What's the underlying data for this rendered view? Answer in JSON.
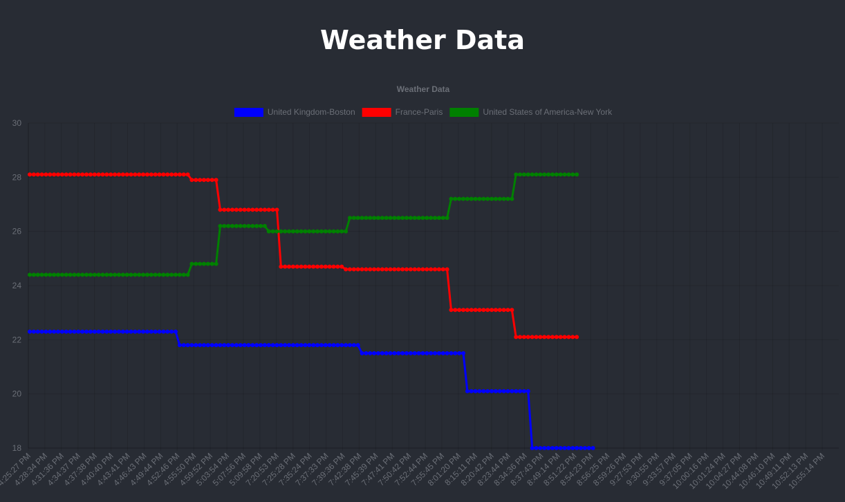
{
  "page": {
    "title": "Weather Data"
  },
  "chart_data": {
    "type": "line",
    "title": "Weather Data",
    "xlabel": "",
    "ylabel": "",
    "ylim": [
      18,
      30
    ],
    "y_ticks": [
      18,
      20,
      22,
      24,
      26,
      28,
      30
    ],
    "grid": true,
    "legend_position": "top-center",
    "tick_labels": [
      "4:25:27 PM",
      "4:28:34 PM",
      "4:31:36 PM",
      "4:34:37 PM",
      "4:37:38 PM",
      "4:40:40 PM",
      "4:43:41 PM",
      "4:46:43 PM",
      "4:49:44 PM",
      "4:52:46 PM",
      "4:55:50 PM",
      "4:59:52 PM",
      "5:03:54 PM",
      "5:07:56 PM",
      "5:09:58 PM",
      "7:20:53 PM",
      "7:25:28 PM",
      "7:35:24 PM",
      "7:37:33 PM",
      "7:39:36 PM",
      "7:42:38 PM",
      "7:45:39 PM",
      "7:47:41 PM",
      "7:50:42 PM",
      "7:52:44 PM",
      "7:55:45 PM",
      "8:01:20 PM",
      "8:15:11 PM",
      "8:20:42 PM",
      "8:23:44 PM",
      "8:34:36 PM",
      "8:37:43 PM",
      "8:49:14 PM",
      "8:51:22 PM",
      "8:54:23 PM",
      "8:56:25 PM",
      "8:59:26 PM",
      "9:27:53 PM",
      "9:30:55 PM",
      "9:33:57 PM",
      "9:37:05 PM",
      "10:00:16 PM",
      "10:01:24 PM",
      "10:04:27 PM",
      "10:44:08 PM",
      "10:46:10 PM",
      "10:49:11 PM",
      "10:52:13 PM",
      "10:55:14 PM"
    ],
    "series": [
      {
        "name": "United Kingdom-Boston",
        "color": "#0000ff",
        "values": [
          22.3,
          22.3,
          22.3,
          22.3,
          22.3,
          22.3,
          22.3,
          22.3,
          22.3,
          22.3,
          22.3,
          22.3,
          22.3,
          22.3,
          22.3,
          22.3,
          22.3,
          22.3,
          22.3,
          22.3,
          22.3,
          22.3,
          22.3,
          22.3,
          22.3,
          22.3,
          22.3,
          22.3,
          22.3,
          22.3,
          22.3,
          22.3,
          22.3,
          22.3,
          22.3,
          22.3,
          22.3,
          21.8,
          21.8,
          21.8,
          21.8,
          21.8,
          21.8,
          21.8,
          21.8,
          21.8,
          21.8,
          21.8,
          21.8,
          21.8,
          21.8,
          21.8,
          21.8,
          21.8,
          21.8,
          21.8,
          21.8,
          21.8,
          21.8,
          21.8,
          21.8,
          21.8,
          21.8,
          21.8,
          21.8,
          21.8,
          21.8,
          21.8,
          21.8,
          21.8,
          21.8,
          21.8,
          21.8,
          21.8,
          21.8,
          21.8,
          21.8,
          21.8,
          21.8,
          21.8,
          21.8,
          21.8,
          21.5,
          21.5,
          21.5,
          21.5,
          21.5,
          21.5,
          21.5,
          21.5,
          21.5,
          21.5,
          21.5,
          21.5,
          21.5,
          21.5,
          21.5,
          21.5,
          21.5,
          21.5,
          21.5,
          21.5,
          21.5,
          21.5,
          21.5,
          21.5,
          21.5,
          21.5,
          20.1,
          20.1,
          20.1,
          20.1,
          20.1,
          20.1,
          20.1,
          20.1,
          20.1,
          20.1,
          20.1,
          20.1,
          20.1,
          20.1,
          20.1,
          20.1,
          18.0,
          18.0,
          18.0,
          18.0,
          18.0,
          18.0,
          18.0,
          18.0,
          18.0,
          18.0,
          18.0,
          18.0,
          18.0,
          18.0,
          18.0,
          18.0
        ]
      },
      {
        "name": "France-Paris",
        "color": "#ff0000",
        "values": [
          28.1,
          28.1,
          28.1,
          28.1,
          28.1,
          28.1,
          28.1,
          28.1,
          28.1,
          28.1,
          28.1,
          28.1,
          28.1,
          28.1,
          28.1,
          28.1,
          28.1,
          28.1,
          28.1,
          28.1,
          28.1,
          28.1,
          28.1,
          28.1,
          28.1,
          28.1,
          28.1,
          28.1,
          28.1,
          28.1,
          28.1,
          28.1,
          28.1,
          28.1,
          28.1,
          28.1,
          28.1,
          28.1,
          28.1,
          28.1,
          27.9,
          27.9,
          27.9,
          27.9,
          27.9,
          27.9,
          27.9,
          26.8,
          26.8,
          26.8,
          26.8,
          26.8,
          26.8,
          26.8,
          26.8,
          26.8,
          26.8,
          26.8,
          26.8,
          26.8,
          26.8,
          26.8,
          24.7,
          24.7,
          24.7,
          24.7,
          24.7,
          24.7,
          24.7,
          24.7,
          24.7,
          24.7,
          24.7,
          24.7,
          24.7,
          24.7,
          24.7,
          24.7,
          24.6,
          24.6,
          24.6,
          24.6,
          24.6,
          24.6,
          24.6,
          24.6,
          24.6,
          24.6,
          24.6,
          24.6,
          24.6,
          24.6,
          24.6,
          24.6,
          24.6,
          24.6,
          24.6,
          24.6,
          24.6,
          24.6,
          24.6,
          24.6,
          24.6,
          24.6,
          23.1,
          23.1,
          23.1,
          23.1,
          23.1,
          23.1,
          23.1,
          23.1,
          23.1,
          23.1,
          23.1,
          23.1,
          23.1,
          23.1,
          23.1,
          23.1,
          22.1,
          22.1,
          22.1,
          22.1,
          22.1,
          22.1,
          22.1,
          22.1,
          22.1,
          22.1,
          22.1,
          22.1,
          22.1,
          22.1,
          22.1,
          22.1
        ]
      },
      {
        "name": "United States of America-New York",
        "color": "#008000",
        "values": [
          24.4,
          24.4,
          24.4,
          24.4,
          24.4,
          24.4,
          24.4,
          24.4,
          24.4,
          24.4,
          24.4,
          24.4,
          24.4,
          24.4,
          24.4,
          24.4,
          24.4,
          24.4,
          24.4,
          24.4,
          24.4,
          24.4,
          24.4,
          24.4,
          24.4,
          24.4,
          24.4,
          24.4,
          24.4,
          24.4,
          24.4,
          24.4,
          24.4,
          24.4,
          24.4,
          24.4,
          24.4,
          24.4,
          24.4,
          24.4,
          24.8,
          24.8,
          24.8,
          24.8,
          24.8,
          24.8,
          24.8,
          26.2,
          26.2,
          26.2,
          26.2,
          26.2,
          26.2,
          26.2,
          26.2,
          26.2,
          26.2,
          26.2,
          26.2,
          26.0,
          26.0,
          26.0,
          26.0,
          26.0,
          26.0,
          26.0,
          26.0,
          26.0,
          26.0,
          26.0,
          26.0,
          26.0,
          26.0,
          26.0,
          26.0,
          26.0,
          26.0,
          26.0,
          26.0,
          26.5,
          26.5,
          26.5,
          26.5,
          26.5,
          26.5,
          26.5,
          26.5,
          26.5,
          26.5,
          26.5,
          26.5,
          26.5,
          26.5,
          26.5,
          26.5,
          26.5,
          26.5,
          26.5,
          26.5,
          26.5,
          26.5,
          26.5,
          26.5,
          26.5,
          27.2,
          27.2,
          27.2,
          27.2,
          27.2,
          27.2,
          27.2,
          27.2,
          27.2,
          27.2,
          27.2,
          27.2,
          27.2,
          27.2,
          27.2,
          27.2,
          28.1,
          28.1,
          28.1,
          28.1,
          28.1,
          28.1,
          28.1,
          28.1,
          28.1,
          28.1,
          28.1,
          28.1,
          28.1,
          28.1,
          28.1,
          28.1
        ]
      }
    ]
  }
}
